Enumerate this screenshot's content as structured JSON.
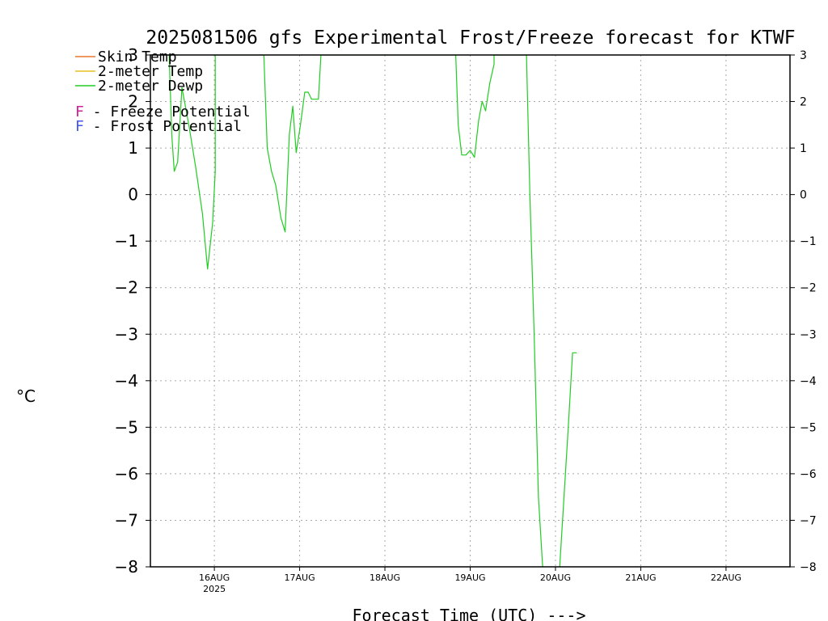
{
  "chart_data": {
    "type": "line",
    "title": "2025081506 gfs Experimental Frost/Freeze forecast for KTWF",
    "xlabel": "Forecast Time (UTC) --->",
    "ylabel": "°C",
    "ylim": [
      -8,
      3
    ],
    "yticks": [
      3,
      2,
      1,
      0,
      -1,
      -2,
      -3,
      -4,
      -5,
      -6,
      -7,
      -8
    ],
    "ytick_labels": [
      "3",
      "2",
      "1",
      "0",
      "−1",
      "−2",
      "−3",
      "−4",
      "−5",
      "−6",
      "−7",
      "−8"
    ],
    "xlim": [
      15.25,
      22.75
    ],
    "xticks": [
      {
        "value": 16,
        "label": "16AUG",
        "sublabel": "2025"
      },
      {
        "value": 17,
        "label": "17AUG",
        "sublabel": ""
      },
      {
        "value": 18,
        "label": "18AUG",
        "sublabel": ""
      },
      {
        "value": 19,
        "label": "19AUG",
        "sublabel": ""
      },
      {
        "value": 20,
        "label": "20AUG",
        "sublabel": ""
      },
      {
        "value": 21,
        "label": "21AUG",
        "sublabel": ""
      },
      {
        "value": 22,
        "label": "22AUG",
        "sublabel": ""
      }
    ],
    "grid": true,
    "legend_placement": "top-left",
    "legend": [
      {
        "label": "Skin Temp",
        "color": "#e8792a"
      },
      {
        "label": "2-meter Temp",
        "color": "#e8c020"
      },
      {
        "label": "2-meter Dewp",
        "color": "#22cc22"
      }
    ],
    "potential_legend": [
      {
        "marker": "F",
        "text": " - Freeze Potential",
        "color": "#cc2299"
      },
      {
        "marker": "F",
        "text": " - Frost Potential",
        "color": "#4455ee"
      }
    ],
    "series": [
      {
        "name": "2-meter Dewp",
        "color": "#22cc22",
        "x": [
          15.47,
          15.5,
          15.53,
          15.57,
          15.62,
          15.7,
          15.78,
          15.86,
          15.92,
          15.98,
          16.01,
          16.01,
          16.58,
          16.62,
          16.67,
          16.72,
          16.78,
          16.83,
          16.88,
          16.92,
          16.96,
          17.01,
          17.06,
          17.1,
          17.14,
          17.18,
          17.22,
          17.25,
          17.25,
          18.83,
          18.86,
          18.9,
          18.95,
          19.0,
          19.05,
          19.1,
          19.14,
          19.18,
          19.23,
          19.28,
          19.28,
          19.66,
          19.7,
          19.75,
          19.8,
          19.85,
          19.9,
          19.95,
          20.0,
          20.05,
          20.1,
          20.15,
          20.2,
          20.25
        ],
        "y": [
          3,
          1.3,
          0.5,
          0.7,
          2.3,
          1.5,
          0.6,
          -0.4,
          -1.6,
          -0.6,
          0.5,
          3,
          3,
          1.0,
          0.5,
          0.2,
          -0.5,
          -0.8,
          1.3,
          1.9,
          0.9,
          1.5,
          2.2,
          2.2,
          2.05,
          2.05,
          2.05,
          3,
          3,
          3,
          1.5,
          0.85,
          0.85,
          0.95,
          0.8,
          1.6,
          2.0,
          1.8,
          2.4,
          2.8,
          3,
          3,
          0.0,
          -3.0,
          -6.5,
          -8.0,
          -8.2,
          -8.2,
          -8.2,
          -8.0,
          -6.5,
          -5.0,
          -3.4,
          -3.4
        ]
      }
    ]
  }
}
